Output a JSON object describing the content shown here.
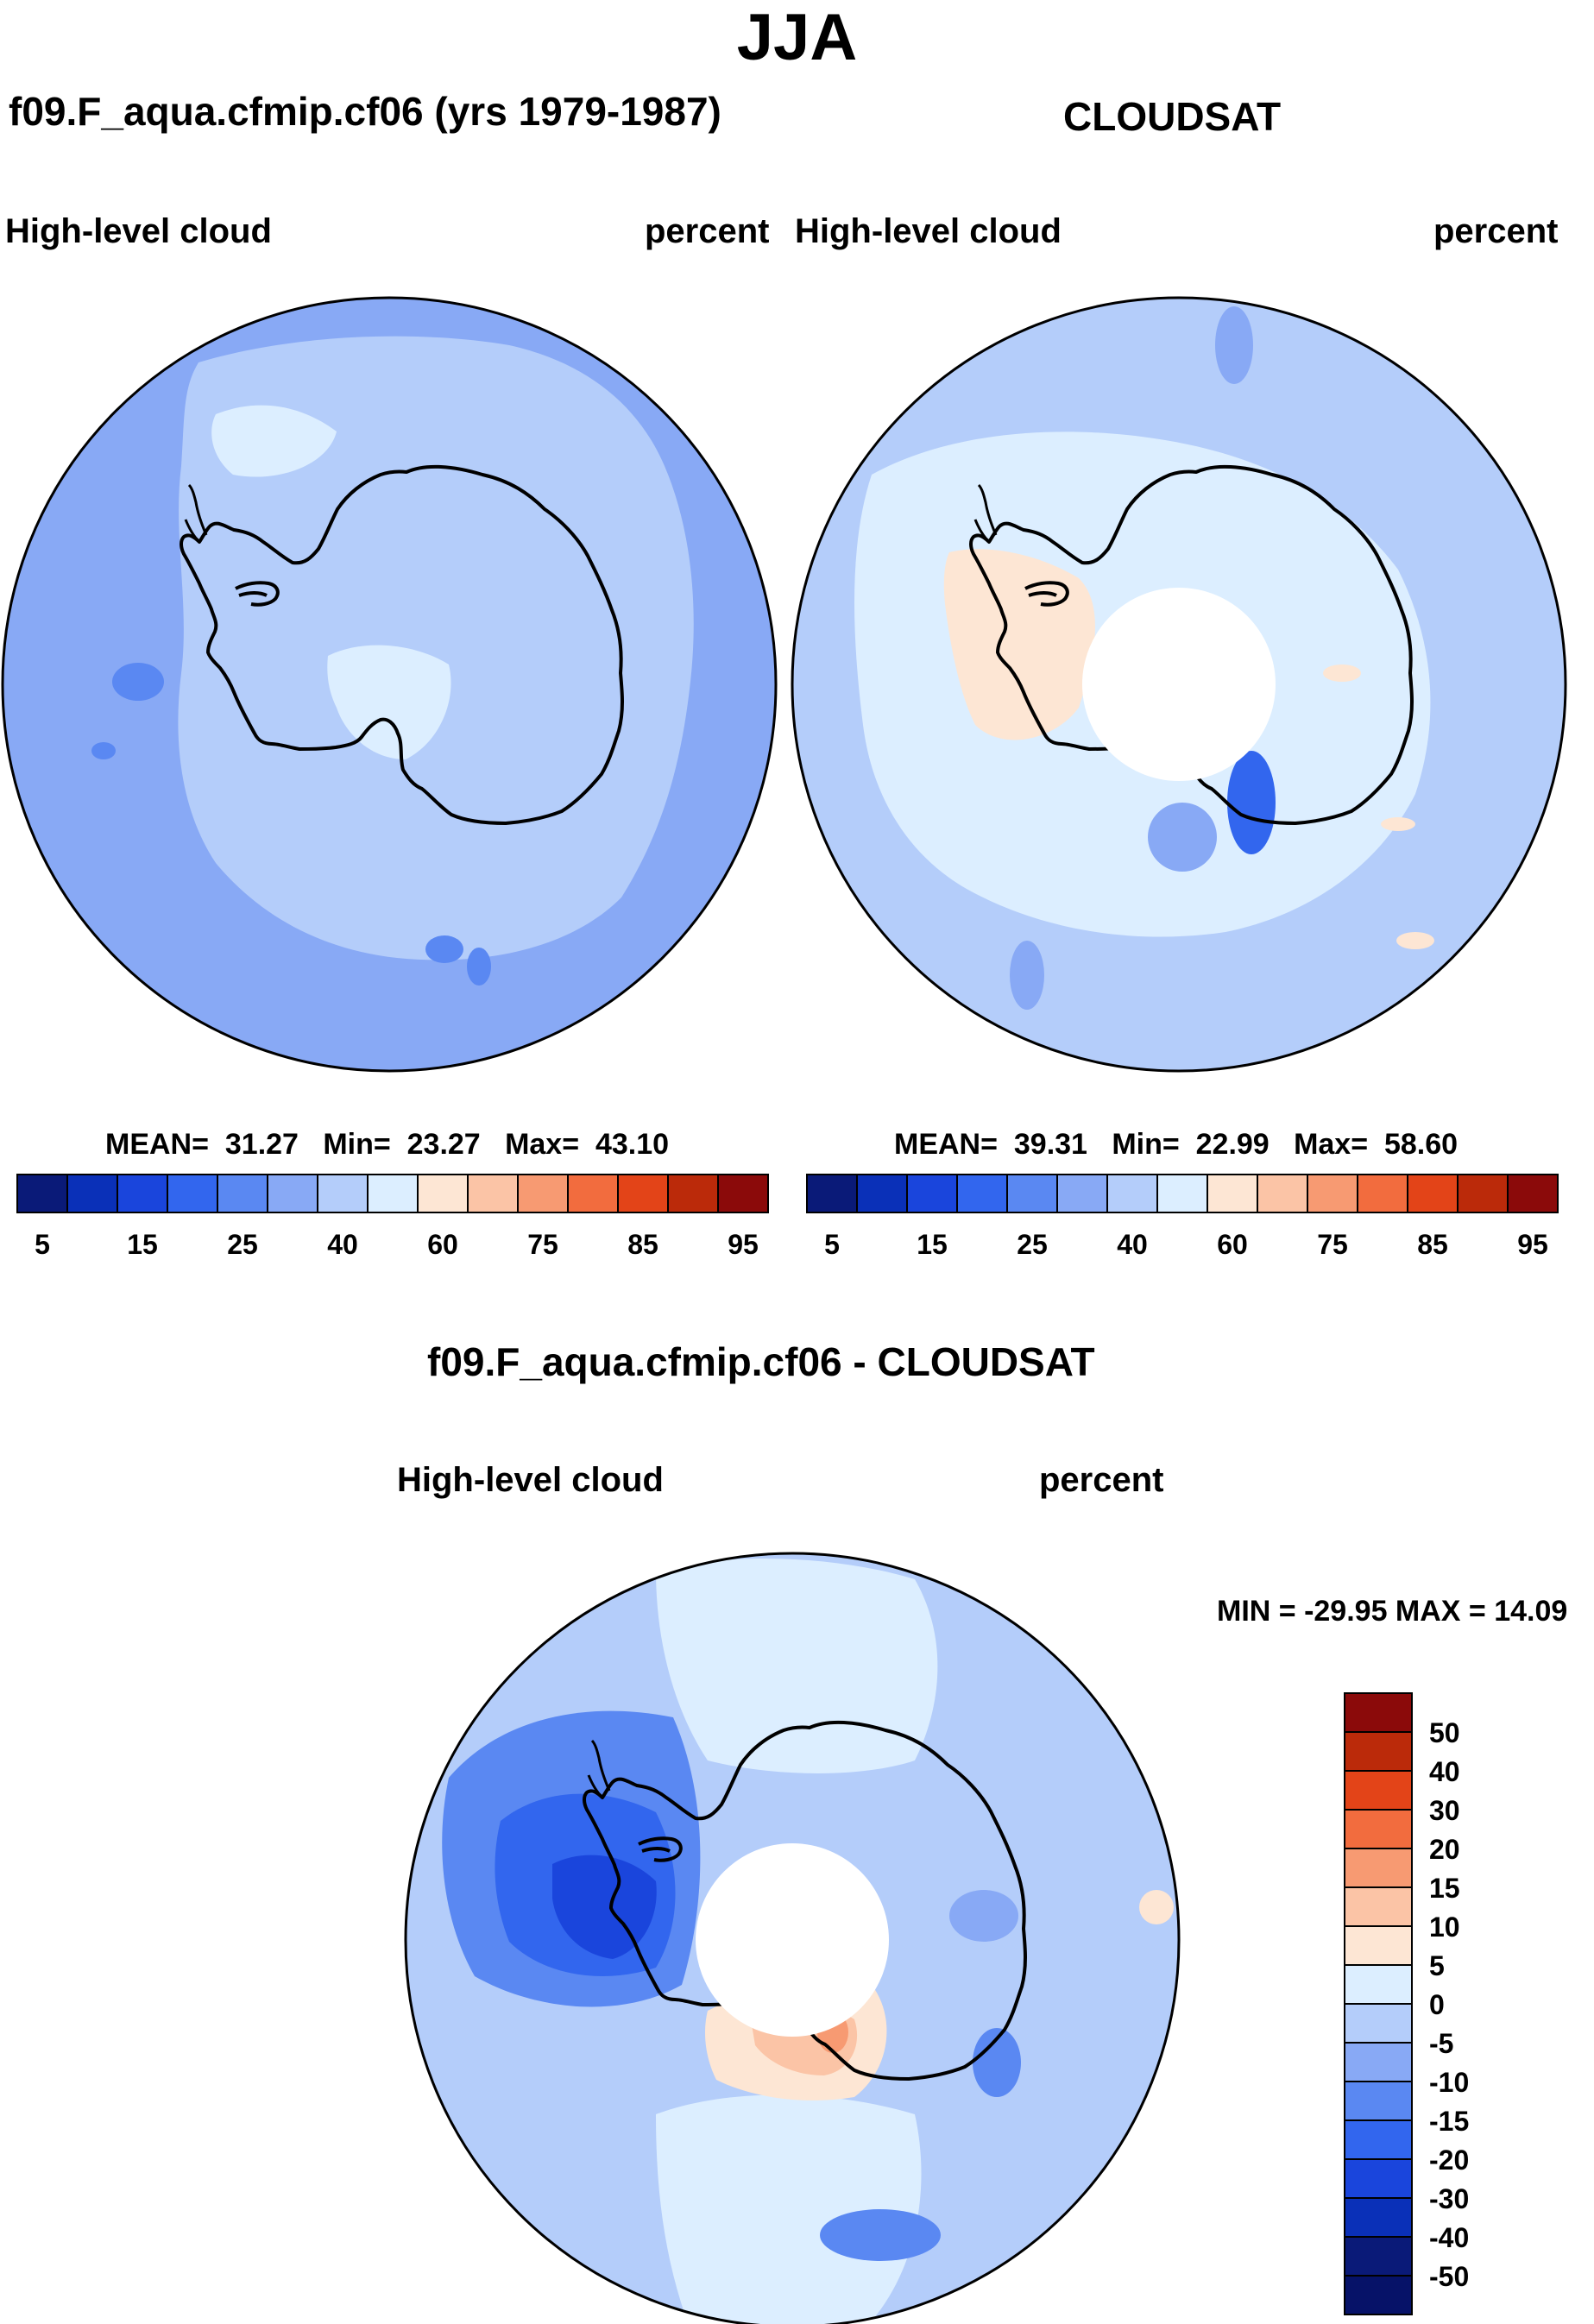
{
  "title": "JJA",
  "panel_left": {
    "case": "f09.F_aqua.cfmip.cf06 (yrs 1979-1987)",
    "variable": "High-level cloud",
    "units": "percent",
    "stats": {
      "mean_label": "MEAN=",
      "mean": "31.27",
      "min_label": "Min=",
      "min": "23.27",
      "max_label": "Max=",
      "max": "43.10"
    }
  },
  "panel_right": {
    "case": "CLOUDSAT",
    "variable": "High-level cloud",
    "units": "percent",
    "stats": {
      "mean_label": "MEAN=",
      "mean": "39.31",
      "min_label": "Min=",
      "min": "22.99",
      "max_label": "Max=",
      "max": "58.60"
    }
  },
  "panel_diff": {
    "case": "f09.F_aqua.cfmip.cf06 - CLOUDSAT",
    "variable": "High-level cloud",
    "units": "percent",
    "minmax": "MIN = -29.95 MAX =  14.09"
  },
  "colors": {
    "scale": [
      "#0a1a78",
      "#0a30b8",
      "#1a45dc",
      "#3266ee",
      "#5a88f2",
      "#88a9f5",
      "#b4cdfa",
      "#dceeff",
      "#fde6d4",
      "#fbc4a6",
      "#f79a72",
      "#f26c3e",
      "#e34418",
      "#bb2a0a",
      "#8b0a0a"
    ],
    "background": "#ffffff",
    "coast": "#000000"
  },
  "chart_data": [
    {
      "type": "heatmap",
      "title": "f09.F_aqua.cfmip.cf06 (yrs 1979-1987)",
      "projection": "south polar stereographic",
      "variable": "High-level cloud",
      "units": "percent",
      "colorbar_ticks": [
        "5",
        "15",
        "25",
        "40",
        "60",
        "75",
        "85",
        "95"
      ],
      "colorbar_levels": [
        5,
        10,
        15,
        20,
        25,
        30,
        40,
        50,
        60,
        65,
        75,
        80,
        85,
        90,
        95
      ],
      "mean": 31.27,
      "min": 23.27,
      "max": 43.1
    },
    {
      "type": "heatmap",
      "title": "CLOUDSAT",
      "projection": "south polar stereographic",
      "variable": "High-level cloud",
      "units": "percent",
      "colorbar_ticks": [
        "5",
        "15",
        "25",
        "40",
        "60",
        "75",
        "85",
        "95"
      ],
      "colorbar_levels": [
        5,
        10,
        15,
        20,
        25,
        30,
        40,
        50,
        60,
        65,
        75,
        80,
        85,
        90,
        95
      ],
      "mean": 39.31,
      "min": 22.99,
      "max": 58.6
    },
    {
      "type": "heatmap",
      "title": "f09.F_aqua.cfmip.cf06 - CLOUDSAT",
      "projection": "south polar stereographic",
      "variable": "High-level cloud",
      "units": "percent",
      "colorbar_ticks": [
        "50",
        "40",
        "30",
        "20",
        "15",
        "10",
        "5",
        "0",
        "-5",
        "-10",
        "-15",
        "-20",
        "-30",
        "-40",
        "-50"
      ],
      "min": -29.95,
      "max": 14.09
    }
  ]
}
